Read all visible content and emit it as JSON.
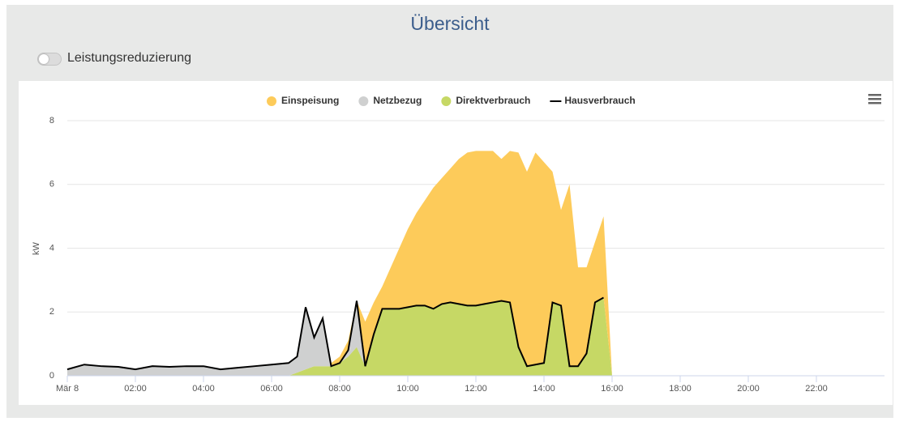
{
  "header": {
    "title": "Übersicht",
    "toggle_label": "Leistungsreduzierung"
  },
  "chart_data": {
    "type": "area",
    "y_label": "kW",
    "x": [
      0,
      0.5,
      1,
      1.5,
      2,
      2.5,
      3,
      3.5,
      4,
      4.5,
      5,
      5.5,
      6,
      6.5,
      6.75,
      7,
      7.25,
      7.5,
      7.75,
      8,
      8.25,
      8.5,
      8.75,
      9,
      9.25,
      9.5,
      9.75,
      10,
      10.25,
      10.5,
      10.75,
      11,
      11.25,
      11.5,
      11.75,
      12,
      12.25,
      12.5,
      12.75,
      13,
      13.25,
      13.5,
      13.75,
      14,
      14.25,
      14.5,
      14.75,
      15,
      15.25,
      15.5,
      15.75,
      16,
      24
    ],
    "xlim": [
      0,
      24
    ],
    "xticks": [
      {
        "value": 0,
        "label": "Mär 8"
      },
      {
        "value": 2,
        "label": "02:00"
      },
      {
        "value": 4,
        "label": "04:00"
      },
      {
        "value": 6,
        "label": "06:00"
      },
      {
        "value": 8,
        "label": "08:00"
      },
      {
        "value": 10,
        "label": "10:00"
      },
      {
        "value": 12,
        "label": "12:00"
      },
      {
        "value": 14,
        "label": "14:00"
      },
      {
        "value": 16,
        "label": "16:00"
      },
      {
        "value": 18,
        "label": "18:00"
      },
      {
        "value": 20,
        "label": "20:00"
      },
      {
        "value": 22,
        "label": "22:00"
      }
    ],
    "ylim": [
      0,
      8
    ],
    "yticks": [
      0,
      2,
      4,
      6,
      8
    ],
    "grid": true,
    "legend": "top",
    "series": [
      {
        "name": "Einspeisung",
        "color": "#fdcb5a",
        "type": "area",
        "values": [
          0,
          0,
          0,
          0,
          0,
          0,
          0,
          0,
          0,
          0,
          0,
          0,
          0,
          0,
          0,
          0,
          0,
          0,
          0.1,
          0.2,
          0.3,
          0,
          1.4,
          1.0,
          0.7,
          1.3,
          1.9,
          2.45,
          2.9,
          3.3,
          3.8,
          3.95,
          4.2,
          4.55,
          4.8,
          4.85,
          4.8,
          4.75,
          4.45,
          4.75,
          6.1,
          6.1,
          6.65,
          6.3,
          4.1,
          3.0,
          5.7,
          3.1,
          2.7,
          1.9,
          2.55,
          0,
          0
        ]
      },
      {
        "name": "Netzbezug",
        "color": "#cfd0d0",
        "type": "area",
        "values": [
          0.2,
          0.35,
          0.3,
          0.28,
          0.2,
          0.3,
          0.28,
          0.3,
          0.3,
          0.2,
          0.25,
          0.3,
          0.35,
          0.4,
          0.5,
          1.95,
          0.9,
          1.5,
          0,
          0,
          0.2,
          1.45,
          0,
          0,
          0,
          0,
          0,
          0,
          0,
          0,
          0,
          0,
          0,
          0,
          0,
          0,
          0,
          0,
          0,
          0,
          0,
          0,
          0,
          0,
          0,
          0,
          0,
          0,
          0,
          0,
          0,
          0,
          0
        ]
      },
      {
        "name": "Direktverbrauch",
        "color": "#c6d865",
        "type": "area",
        "values": [
          0,
          0,
          0,
          0,
          0,
          0,
          0,
          0,
          0,
          0,
          0,
          0,
          0,
          0,
          0.1,
          0.2,
          0.3,
          0.3,
          0.3,
          0.4,
          0.6,
          0.9,
          0.3,
          1.3,
          2.1,
          2.1,
          2.1,
          2.15,
          2.2,
          2.2,
          2.1,
          2.25,
          2.3,
          2.25,
          2.2,
          2.2,
          2.25,
          2.3,
          2.35,
          2.3,
          0.9,
          0.3,
          0.35,
          0.4,
          2.3,
          2.2,
          0.3,
          0.3,
          0.7,
          2.3,
          2.45,
          0,
          0
        ]
      },
      {
        "name": "Hausverbrauch",
        "color": "#000000",
        "type": "line",
        "values": [
          0.2,
          0.35,
          0.3,
          0.28,
          0.2,
          0.3,
          0.28,
          0.3,
          0.3,
          0.2,
          0.25,
          0.3,
          0.35,
          0.4,
          0.6,
          2.15,
          1.2,
          1.8,
          0.3,
          0.4,
          0.8,
          2.35,
          0.3,
          1.3,
          2.1,
          2.1,
          2.1,
          2.15,
          2.2,
          2.2,
          2.1,
          2.25,
          2.3,
          2.25,
          2.2,
          2.2,
          2.25,
          2.3,
          2.35,
          2.3,
          0.9,
          0.3,
          0.35,
          0.4,
          2.3,
          2.2,
          0.3,
          0.3,
          0.7,
          2.3,
          2.45,
          null,
          null
        ]
      }
    ]
  }
}
